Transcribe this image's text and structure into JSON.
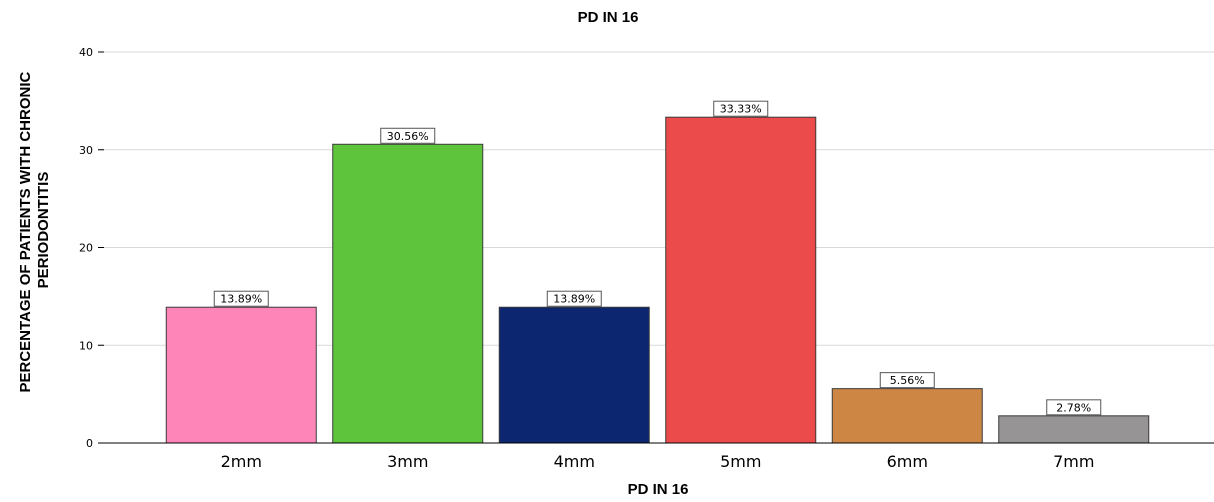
{
  "chart_data": {
    "type": "bar",
    "title": "PD IN 16",
    "xlabel": "PD IN 16",
    "ylabel_lines": [
      "PERCENTAGE OF PATIENTS WITH CHRONIC",
      "PERIODONTITIS"
    ],
    "categories": [
      "2mm",
      "3mm",
      "4mm",
      "5mm",
      "6mm",
      "7mm"
    ],
    "values": [
      13.89,
      30.56,
      13.89,
      33.33,
      5.56,
      2.78
    ],
    "data_labels": [
      "13.89%",
      "30.56%",
      "13.89%",
      "33.33%",
      "5.56%",
      "2.78%"
    ],
    "colors": [
      "#fe85b7",
      "#5ec43b",
      "#0d2670",
      "#ec4b4b",
      "#cd8644",
      "#969494"
    ],
    "ylim": [
      0,
      40
    ],
    "yticks": [
      0,
      10,
      20,
      30,
      40
    ],
    "grid": true
  }
}
